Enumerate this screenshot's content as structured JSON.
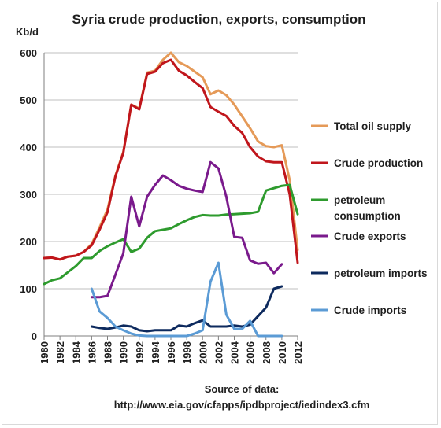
{
  "chart_data": {
    "type": "line",
    "title": "Syria crude production, exports, consumption",
    "ylabel": "Kb/d",
    "xlabel": "",
    "ylim": [
      0,
      600
    ],
    "xlim": [
      1980,
      2012
    ],
    "y_ticks": [
      0,
      100,
      200,
      300,
      400,
      500,
      600
    ],
    "x_ticks": [
      1980,
      1982,
      1984,
      1986,
      1988,
      1990,
      1992,
      1994,
      1996,
      1998,
      2000,
      2002,
      2004,
      2006,
      2008,
      2010,
      2012
    ],
    "grid": "horizontal",
    "legend_position": "right",
    "series": [
      {
        "name": "Total oil supply",
        "color": "#e59a58",
        "points": [
          [
            1980,
            165
          ],
          [
            1981,
            166
          ],
          [
            1982,
            162
          ],
          [
            1983,
            168
          ],
          [
            1984,
            170
          ],
          [
            1985,
            178
          ],
          [
            1986,
            195
          ],
          [
            1987,
            230
          ],
          [
            1988,
            268
          ],
          [
            1989,
            340
          ],
          [
            1990,
            390
          ],
          [
            1991,
            490
          ],
          [
            1992,
            482
          ],
          [
            1993,
            558
          ],
          [
            1994,
            562
          ],
          [
            1995,
            585
          ],
          [
            1996,
            600
          ],
          [
            1997,
            580
          ],
          [
            1998,
            572
          ],
          [
            1999,
            560
          ],
          [
            2000,
            548
          ],
          [
            2001,
            512
          ],
          [
            2002,
            520
          ],
          [
            2003,
            510
          ],
          [
            2004,
            490
          ],
          [
            2005,
            465
          ],
          [
            2006,
            440
          ],
          [
            2007,
            412
          ],
          [
            2008,
            402
          ],
          [
            2009,
            400
          ],
          [
            2010,
            404
          ],
          [
            2011,
            330
          ],
          [
            2012,
            182
          ]
        ]
      },
      {
        "name": "Crude production",
        "color": "#c0161c",
        "points": [
          [
            1980,
            165
          ],
          [
            1981,
            166
          ],
          [
            1982,
            162
          ],
          [
            1983,
            168
          ],
          [
            1984,
            170
          ],
          [
            1985,
            178
          ],
          [
            1986,
            192
          ],
          [
            1987,
            225
          ],
          [
            1988,
            262
          ],
          [
            1989,
            338
          ],
          [
            1990,
            388
          ],
          [
            1991,
            490
          ],
          [
            1992,
            480
          ],
          [
            1993,
            555
          ],
          [
            1994,
            560
          ],
          [
            1995,
            578
          ],
          [
            1996,
            585
          ],
          [
            1997,
            562
          ],
          [
            1998,
            552
          ],
          [
            1999,
            538
          ],
          [
            2000,
            525
          ],
          [
            2001,
            485
          ],
          [
            2002,
            475
          ],
          [
            2003,
            466
          ],
          [
            2004,
            445
          ],
          [
            2005,
            430
          ],
          [
            2006,
            400
          ],
          [
            2007,
            380
          ],
          [
            2008,
            370
          ],
          [
            2009,
            368
          ],
          [
            2010,
            368
          ],
          [
            2011,
            300
          ],
          [
            2012,
            155
          ]
        ]
      },
      {
        "name": "petroleum consumption",
        "color": "#2e9b2e",
        "points": [
          [
            1980,
            110
          ],
          [
            1981,
            118
          ],
          [
            1982,
            122
          ],
          [
            1983,
            135
          ],
          [
            1984,
            148
          ],
          [
            1985,
            165
          ],
          [
            1986,
            165
          ],
          [
            1987,
            180
          ],
          [
            1988,
            190
          ],
          [
            1989,
            198
          ],
          [
            1990,
            205
          ],
          [
            1991,
            178
          ],
          [
            1992,
            185
          ],
          [
            1993,
            208
          ],
          [
            1994,
            222
          ],
          [
            1995,
            225
          ],
          [
            1996,
            228
          ],
          [
            1997,
            237
          ],
          [
            1998,
            245
          ],
          [
            1999,
            252
          ],
          [
            2000,
            256
          ],
          [
            2001,
            255
          ],
          [
            2002,
            255
          ],
          [
            2003,
            257
          ],
          [
            2004,
            258
          ],
          [
            2005,
            259
          ],
          [
            2006,
            260
          ],
          [
            2007,
            263
          ],
          [
            2008,
            308
          ],
          [
            2009,
            313
          ],
          [
            2010,
            318
          ],
          [
            2011,
            320
          ],
          [
            2012,
            258
          ]
        ]
      },
      {
        "name": "Crude exports",
        "color": "#7a1a8c",
        "points": [
          [
            1986,
            82
          ],
          [
            1987,
            82
          ],
          [
            1988,
            85
          ],
          [
            1989,
            130
          ],
          [
            1990,
            175
          ],
          [
            1991,
            295
          ],
          [
            1992,
            232
          ],
          [
            1993,
            295
          ],
          [
            1994,
            320
          ],
          [
            1995,
            340
          ],
          [
            1996,
            330
          ],
          [
            1997,
            318
          ],
          [
            1998,
            312
          ],
          [
            1999,
            308
          ],
          [
            2000,
            305
          ],
          [
            2001,
            368
          ],
          [
            2002,
            355
          ],
          [
            2003,
            295
          ],
          [
            2004,
            210
          ],
          [
            2005,
            208
          ],
          [
            2006,
            160
          ],
          [
            2007,
            153
          ],
          [
            2008,
            155
          ],
          [
            2009,
            133
          ],
          [
            2010,
            152
          ]
        ]
      },
      {
        "name": "petroleum imports",
        "color": "#0d2a5e",
        "points": [
          [
            1986,
            20
          ],
          [
            1987,
            17
          ],
          [
            1988,
            15
          ],
          [
            1989,
            18
          ],
          [
            1990,
            22
          ],
          [
            1991,
            20
          ],
          [
            1992,
            12
          ],
          [
            1993,
            10
          ],
          [
            1994,
            12
          ],
          [
            1995,
            12
          ],
          [
            1996,
            12
          ],
          [
            1997,
            22
          ],
          [
            1998,
            20
          ],
          [
            1999,
            27
          ],
          [
            2000,
            33
          ],
          [
            2001,
            20
          ],
          [
            2002,
            20
          ],
          [
            2003,
            20
          ],
          [
            2004,
            22
          ],
          [
            2005,
            20
          ],
          [
            2006,
            24
          ],
          [
            2007,
            42
          ],
          [
            2008,
            60
          ],
          [
            2009,
            100
          ],
          [
            2010,
            105
          ]
        ]
      },
      {
        "name": "Crude imports",
        "color": "#5b9bd5",
        "points": [
          [
            1986,
            100
          ],
          [
            1987,
            52
          ],
          [
            1988,
            38
          ],
          [
            1989,
            20
          ],
          [
            1990,
            12
          ],
          [
            1991,
            5
          ],
          [
            1992,
            1
          ],
          [
            1993,
            0
          ],
          [
            1994,
            0
          ],
          [
            1995,
            0
          ],
          [
            1996,
            0
          ],
          [
            1997,
            0
          ],
          [
            1998,
            0
          ],
          [
            1999,
            5
          ],
          [
            2000,
            12
          ],
          [
            2001,
            115
          ],
          [
            2002,
            155
          ],
          [
            2003,
            45
          ],
          [
            2004,
            15
          ],
          [
            2005,
            15
          ],
          [
            2006,
            32
          ],
          [
            2007,
            0
          ],
          [
            2008,
            0
          ],
          [
            2009,
            0
          ],
          [
            2010,
            0
          ]
        ]
      }
    ]
  },
  "source": {
    "line1": "Source of data:",
    "line2": "http://www.eia.gov/cfapps/ipdbproject/iedindex3.cfm"
  }
}
